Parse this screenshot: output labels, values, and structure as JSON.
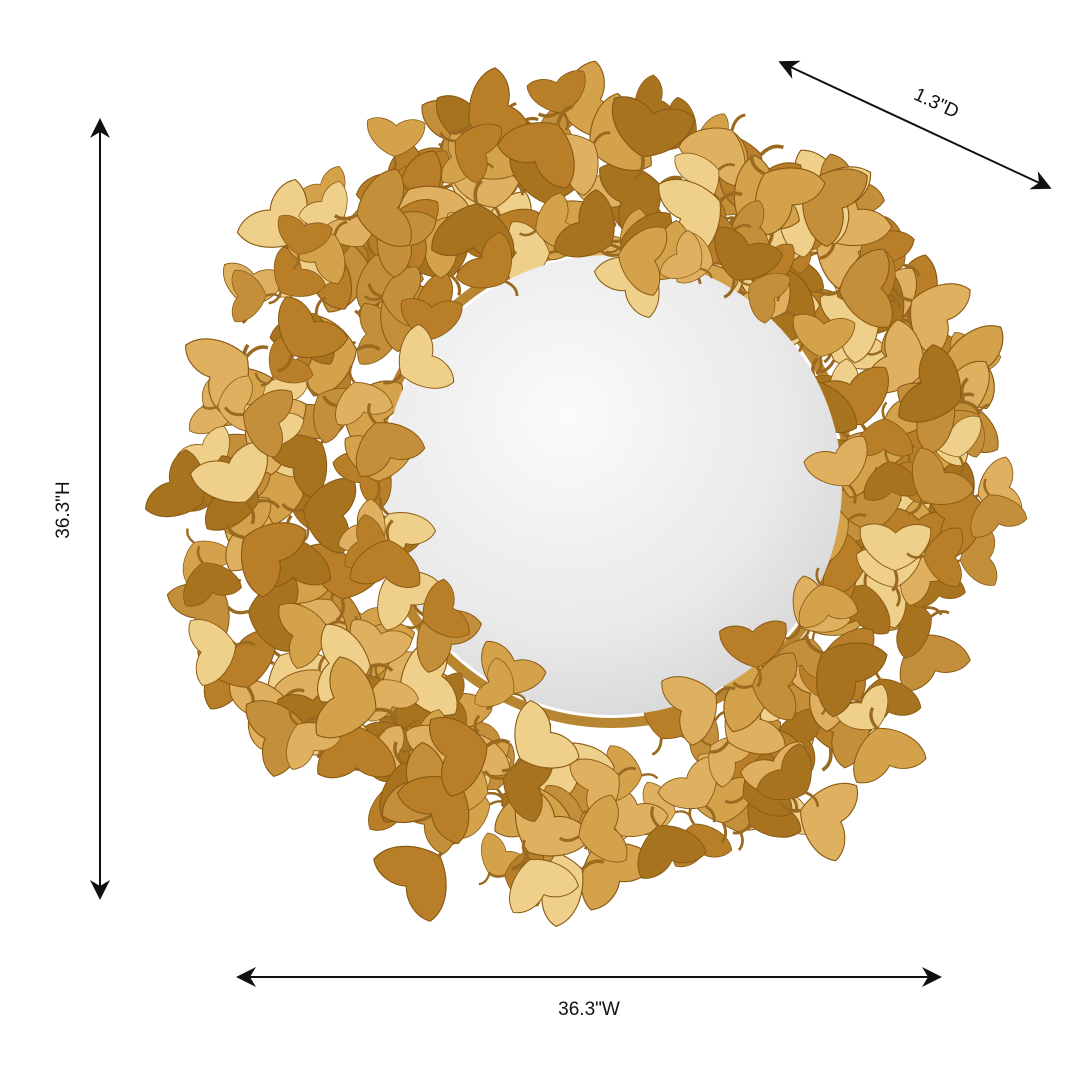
{
  "dimensions": {
    "height": "36.3\"H",
    "width": "36.3\"W",
    "depth": "1.3\"D"
  },
  "colors": {
    "gold_dark": "#a8731e",
    "gold_mid": "#d4a24a",
    "gold_light": "#efd08a",
    "mirror": "#e6e6e6",
    "arrow": "#111111"
  }
}
